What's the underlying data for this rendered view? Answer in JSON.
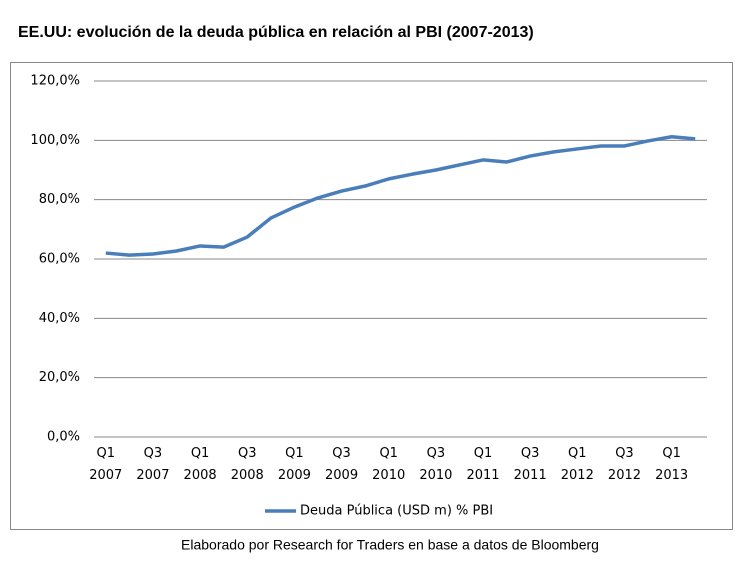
{
  "chart_data": {
    "type": "line",
    "title": "EE.UU: evolución de la deuda pública en relación al PBI (2007-2013)",
    "caption": "Elaborado por Research for Traders en base a datos de Bloomberg",
    "categories": [
      "Q1 2007",
      null,
      "Q3 2007",
      null,
      "Q1 2008",
      null,
      "Q3 2008",
      null,
      "Q1 2009",
      null,
      "Q3 2009",
      null,
      "Q1 2010",
      null,
      "Q3 2010",
      null,
      "Q1 2011",
      null,
      "Q3 2011",
      null,
      "Q1 2012",
      null,
      "Q3 2012",
      null,
      "Q1 2013",
      null
    ],
    "series": [
      {
        "name": "Deuda Pública (USD m) % PBI",
        "color": "#4a7ebb",
        "values": [
          62.0,
          61.3,
          61.7,
          62.7,
          64.4,
          64.0,
          67.4,
          73.8,
          77.5,
          80.6,
          82.9,
          84.6,
          87.0,
          88.6,
          90.0,
          91.7,
          93.4,
          92.7,
          94.7,
          96.1,
          97.1,
          98.1,
          98.1,
          99.8,
          101.2,
          100.5
        ]
      }
    ],
    "ylim": [
      0,
      120
    ],
    "yticks": [
      {
        "value": 0,
        "label": "0,0%"
      },
      {
        "value": 20,
        "label": "20,0%"
      },
      {
        "value": 40,
        "label": "40,0%"
      },
      {
        "value": 60,
        "label": "60,0%"
      },
      {
        "value": 80,
        "label": "80,0%"
      },
      {
        "value": 100,
        "label": "100,0%"
      },
      {
        "value": 120,
        "label": "120,0%"
      }
    ],
    "grid": true,
    "legend": "bottom"
  }
}
